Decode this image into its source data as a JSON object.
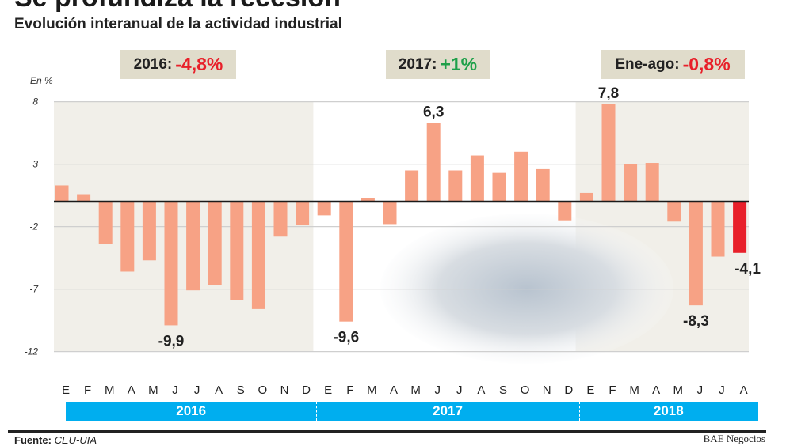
{
  "title": "Se profundiza la recesión",
  "subtitle": "Evolución interanual de la actividad industrial",
  "summary_boxes": [
    {
      "label": "2016:",
      "value": "-4,8%",
      "color": "#e8202a"
    },
    {
      "label": "2017:",
      "value": "+1%",
      "color": "#1fa04a"
    },
    {
      "label": "Ene-ago:",
      "value": "-0,8%",
      "color": "#e8202a"
    }
  ],
  "source_label": "Fuente:",
  "source": "CEU-UIA",
  "brand": "BAE Negocios",
  "chart_data": {
    "type": "bar",
    "ylabel": "En %",
    "yticks": [
      8,
      3,
      -2,
      -7,
      -12
    ],
    "ylim": [
      -12,
      8
    ],
    "grid": true,
    "bar_color": "#f7a285",
    "highlight_color": "#e8202a",
    "months": [
      "E",
      "F",
      "M",
      "A",
      "M",
      "J",
      "J",
      "A",
      "S",
      "O",
      "N",
      "D",
      "E",
      "F",
      "M",
      "A",
      "M",
      "J",
      "J",
      "A",
      "S",
      "O",
      "N",
      "D",
      "E",
      "F",
      "M",
      "A",
      "M",
      "J",
      "J",
      "A"
    ],
    "years": [
      "2016",
      "2017",
      "2018"
    ],
    "values": [
      1.3,
      0.6,
      -3.4,
      -5.6,
      -4.7,
      -9.9,
      -7.1,
      -6.7,
      -7.9,
      -8.6,
      -2.8,
      -1.9,
      -1.1,
      -9.6,
      0.3,
      -1.8,
      2.5,
      6.3,
      2.5,
      3.7,
      2.3,
      4.0,
      2.6,
      -1.5,
      0.7,
      7.8,
      3.0,
      3.1,
      -1.6,
      -8.3,
      -4.4,
      -4.1
    ],
    "data_labels": [
      {
        "index": 5,
        "text": "-9,9"
      },
      {
        "index": 13,
        "text": "-9,6"
      },
      {
        "index": 17,
        "text": "6,3"
      },
      {
        "index": 25,
        "text": "7,8"
      },
      {
        "index": 29,
        "text": "-8,3"
      },
      {
        "index": 31,
        "text": "-4,1"
      }
    ]
  }
}
